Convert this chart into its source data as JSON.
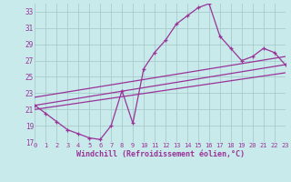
{
  "xlabel": "Windchill (Refroidissement éolien,°C)",
  "bg_color": "#c8eaea",
  "line_color": "#993399",
  "grid_color": "#a8cccc",
  "x_data": [
    0,
    1,
    2,
    3,
    4,
    5,
    6,
    7,
    8,
    9,
    10,
    11,
    12,
    13,
    14,
    15,
    16,
    17,
    18,
    19,
    20,
    21,
    22,
    23
  ],
  "y_data": [
    21.5,
    20.5,
    19.5,
    18.5,
    18.0,
    17.5,
    17.3,
    19.0,
    23.3,
    19.3,
    26.0,
    28.0,
    29.5,
    31.5,
    32.5,
    33.5,
    34.0,
    30.0,
    28.5,
    27.0,
    27.5,
    28.5,
    28.0,
    26.5
  ],
  "trend_lines": [
    {
      "x": [
        0,
        23
      ],
      "y": [
        21.5,
        26.5
      ]
    },
    {
      "x": [
        0,
        23
      ],
      "y": [
        22.5,
        27.5
      ]
    },
    {
      "x": [
        0,
        23
      ],
      "y": [
        21.0,
        25.5
      ]
    }
  ],
  "ylim": [
    17,
    34
  ],
  "xlim": [
    0,
    23
  ],
  "yticks": [
    17,
    19,
    21,
    23,
    25,
    27,
    29,
    31,
    33
  ],
  "xticks": [
    0,
    1,
    2,
    3,
    4,
    5,
    6,
    7,
    8,
    9,
    10,
    11,
    12,
    13,
    14,
    15,
    16,
    17,
    18,
    19,
    20,
    21,
    22,
    23
  ]
}
